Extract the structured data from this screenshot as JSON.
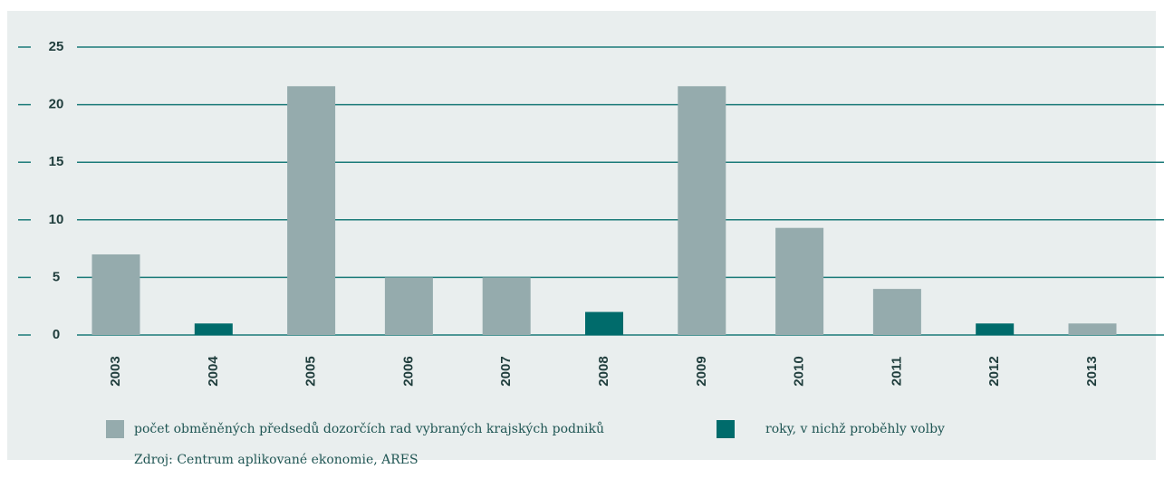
{
  "chart_data": {
    "type": "bar",
    "categories": [
      "2003",
      "2004",
      "2005",
      "2006",
      "2007",
      "2008",
      "2009",
      "2010",
      "2011",
      "2012",
      "2013"
    ],
    "series": [
      {
        "name": "počet obměněných předsedů dozorčích rad vybraných krajských podniků",
        "color": "#95abad",
        "values": [
          7,
          null,
          21.6,
          5,
          5,
          null,
          21.6,
          9.3,
          4,
          null,
          1
        ]
      },
      {
        "name": "roky, v nichž proběhly volby",
        "color": "#006b6b",
        "values": [
          null,
          1,
          null,
          null,
          null,
          2,
          null,
          null,
          null,
          1,
          null
        ]
      }
    ],
    "ylim": [
      0,
      25
    ],
    "yticks": [
      0,
      5,
      10,
      15,
      20,
      25
    ],
    "grid": true,
    "source": "Zdroj: Centrum aplikované ekonomie, ARES"
  }
}
